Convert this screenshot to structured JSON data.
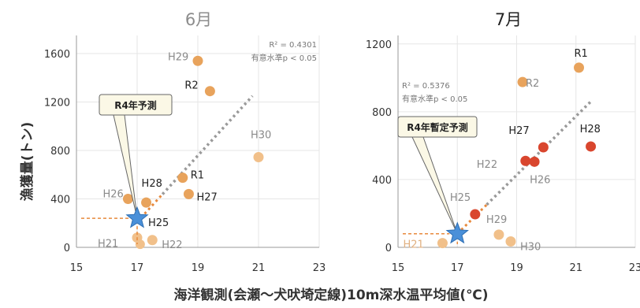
{
  "chart_data": [
    {
      "type": "scatter",
      "title": "6月",
      "x_ticks": [
        15,
        17,
        19,
        21,
        23
      ],
      "y_ticks": [
        0,
        400,
        800,
        1200,
        1600
      ],
      "xlim": [
        15,
        23
      ],
      "ylim": [
        0,
        1750
      ],
      "grid": true,
      "points": [
        {
          "label": "H29",
          "x": 19.0,
          "y": 1540,
          "color": "#e8a35c",
          "label_color": "#8a8a8a"
        },
        {
          "label": "R2",
          "x": 19.4,
          "y": 1290,
          "color": "#e8a35c",
          "label_color": "#222222"
        },
        {
          "label": "H30",
          "x": 21.0,
          "y": 745,
          "color": "#f1c08a",
          "label_color": "#8a8a8a"
        },
        {
          "label": "R1",
          "x": 18.5,
          "y": 575,
          "color": "#e8a35c",
          "label_color": "#222222"
        },
        {
          "label": "H27",
          "x": 18.7,
          "y": 440,
          "color": "#e8a35c",
          "label_color": "#222222"
        },
        {
          "label": "H26",
          "x": 16.7,
          "y": 400,
          "color": "#e8a35c",
          "label_color": "#8a8a8a"
        },
        {
          "label": "H28",
          "x": 17.3,
          "y": 370,
          "color": "#e8a35c",
          "label_color": "#222222"
        },
        {
          "label": "H25",
          "x": 17.0,
          "y": 240,
          "color": "#e8a35c",
          "label_color": "#222222"
        },
        {
          "label": "H21",
          "x": 17.0,
          "y": 80,
          "color": "#f1c08a",
          "label_color": "#8a8a8a"
        },
        {
          "label": "H22",
          "x": 17.5,
          "y": 60,
          "color": "#f1c08a",
          "label_color": "#8a8a8a"
        }
      ],
      "extra_points": [
        {
          "x": 17.1,
          "y": 25,
          "color": "#f1c08a"
        }
      ],
      "trendline": {
        "from": [
          17.0,
          210
        ],
        "to": [
          20.8,
          1250
        ]
      },
      "stats": [
        "R² = 0.4301",
        "有意水準p < 0.05"
      ],
      "forecast": {
        "label": "R4年予測",
        "x": 17.0,
        "y": 240
      }
    },
    {
      "type": "scatter",
      "title": "7月",
      "x_ticks": [
        15,
        17,
        19,
        21,
        23
      ],
      "y_ticks": [
        0,
        400,
        800,
        1200
      ],
      "xlim": [
        15,
        23
      ],
      "ylim": [
        0,
        1250
      ],
      "grid": true,
      "points": [
        {
          "label": "R1",
          "x": 21.1,
          "y": 1060,
          "color": "#e8a35c",
          "label_color": "#222222"
        },
        {
          "label": "R2",
          "x": 19.2,
          "y": 975,
          "color": "#e8a35c",
          "label_color": "#8a8a8a"
        },
        {
          "label": "H28",
          "x": 21.5,
          "y": 595,
          "color": "#d9462e",
          "label_color": "#222222"
        },
        {
          "label": "H27",
          "x": 19.9,
          "y": 590,
          "color": "#d9462e",
          "label_color": "#222222"
        },
        {
          "label": "H22",
          "x": 19.3,
          "y": 510,
          "color": "#d9462e",
          "label_color": "#8a8a8a"
        },
        {
          "label": "H26",
          "x": 19.6,
          "y": 505,
          "color": "#d9462e",
          "label_color": "#8a8a8a"
        },
        {
          "label": "H25",
          "x": 17.6,
          "y": 195,
          "color": "#d9462e",
          "label_color": "#8a8a8a"
        },
        {
          "label": "H29",
          "x": 18.4,
          "y": 75,
          "color": "#f1c08a",
          "label_color": "#8a8a8a"
        },
        {
          "label": "H30",
          "x": 18.8,
          "y": 35,
          "color": "#f1c08a",
          "label_color": "#8a8a8a"
        },
        {
          "label": "H21",
          "x": 16.5,
          "y": 25,
          "color": "#f1c08a",
          "label_color": "#e0b080"
        }
      ],
      "extra_points": [],
      "trendline": {
        "from": [
          17.0,
          80
        ],
        "to": [
          21.5,
          860
        ]
      },
      "stats": [
        "R² = 0.5376",
        "有意水準p < 0.05"
      ],
      "forecast": {
        "label": "R4年暫定予測",
        "x": 17.0,
        "y": 80
      }
    }
  ],
  "ylabel": "漁獲量(トン)",
  "xlabel": "海洋観測(会瀬～犬吠埼定線)10m深水温平均値(℃)"
}
